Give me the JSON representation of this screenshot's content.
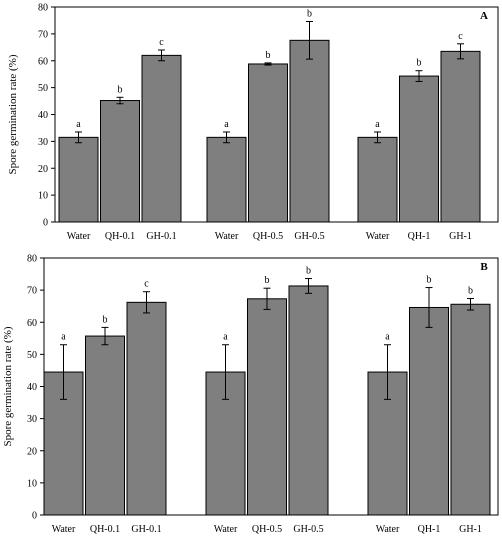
{
  "colors": {
    "bar": "#7f7f7f",
    "stroke": "#000000",
    "background": "#ffffff"
  },
  "chart_data": [
    {
      "type": "bar",
      "panel_label": "A",
      "ylabel": "Spore germination rate (%)",
      "ylim": [
        0,
        80
      ],
      "yticks": [
        0,
        10,
        20,
        30,
        40,
        50,
        60,
        70,
        80
      ],
      "grid": false,
      "groups": [
        {
          "bars": [
            {
              "category": "Water",
              "value": 31.5,
              "error": 2,
              "letter": "a"
            },
            {
              "category": "QH-0.1",
              "value": 45.2,
              "error": 1.2,
              "letter": "b"
            },
            {
              "category": "GH-0.1",
              "value": 62,
              "error": 2,
              "letter": "c"
            }
          ]
        },
        {
          "bars": [
            {
              "category": "Water",
              "value": 31.5,
              "error": 2,
              "letter": "a"
            },
            {
              "category": "QH-0.5",
              "value": 58.8,
              "error": 0.4,
              "letter": "b"
            },
            {
              "category": "GH-0.5",
              "value": 67.6,
              "error": 7,
              "letter": "b"
            }
          ]
        },
        {
          "bars": [
            {
              "category": "Water",
              "value": 31.5,
              "error": 2,
              "letter": "a"
            },
            {
              "category": "QH-1",
              "value": 54.3,
              "error": 2,
              "letter": "b"
            },
            {
              "category": "GH-1",
              "value": 63.5,
              "error": 2.8,
              "letter": "c"
            }
          ]
        }
      ]
    },
    {
      "type": "bar",
      "panel_label": "B",
      "ylabel": "Spore germination rate (%)",
      "ylim": [
        0,
        80
      ],
      "yticks": [
        0,
        10,
        20,
        30,
        40,
        50,
        60,
        70,
        80
      ],
      "grid": false,
      "groups": [
        {
          "bars": [
            {
              "category": "Water",
              "value": 44.5,
              "error": 8.5,
              "letter": "a"
            },
            {
              "category": "QH-0.1",
              "value": 55.7,
              "error": 2.7,
              "letter": "b"
            },
            {
              "category": "GH-0.1",
              "value": 66.2,
              "error": 3.3,
              "letter": "c"
            }
          ]
        },
        {
          "bars": [
            {
              "category": "Water",
              "value": 44.5,
              "error": 8.5,
              "letter": "a"
            },
            {
              "category": "QH-0.5",
              "value": 67.3,
              "error": 3.3,
              "letter": "b"
            },
            {
              "category": "GH-0.5",
              "value": 71.3,
              "error": 2.3,
              "letter": "b"
            }
          ]
        },
        {
          "bars": [
            {
              "category": "Water",
              "value": 44.5,
              "error": 8.5,
              "letter": "a"
            },
            {
              "category": "QH-1",
              "value": 64.6,
              "error": 6.2,
              "letter": "b"
            },
            {
              "category": "GH-1",
              "value": 65.6,
              "error": 1.8,
              "letter": "b"
            }
          ]
        }
      ]
    }
  ]
}
